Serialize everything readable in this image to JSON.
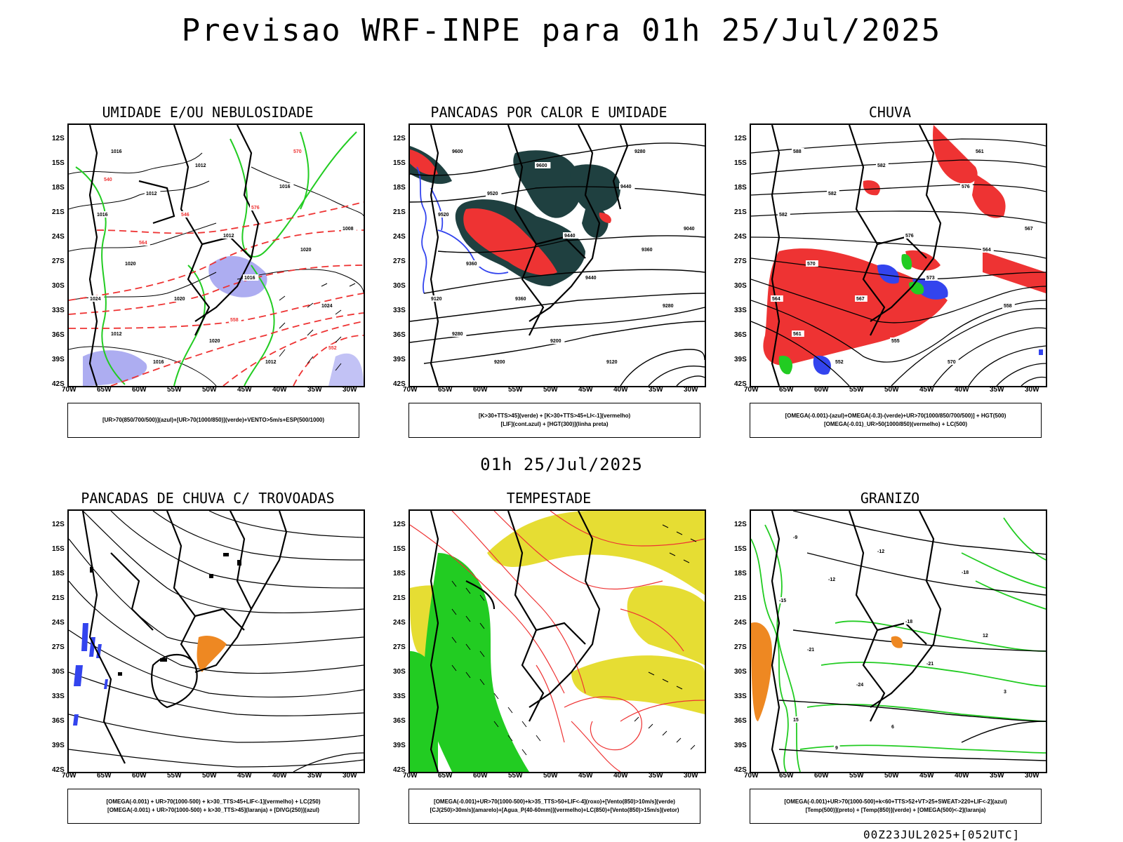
{
  "title": "Previsao WRF-INPE  para 01h 25/Jul/2025",
  "middle_title": "01h 25/Jul/2025",
  "footer": "00Z23JUL2025+[052UTC]",
  "lat_ticks": [
    "12S",
    "15S",
    "18S",
    "21S",
    "24S",
    "27S",
    "30S",
    "33S",
    "36S",
    "39S",
    "42S"
  ],
  "lon_ticks": [
    "70W",
    "65W",
    "60W",
    "55W",
    "50W",
    "45W",
    "40W",
    "35W",
    "30W"
  ],
  "panels": [
    {
      "title": "UMIDADE E/OU NEBULOSIDADE",
      "legend": [
        "[UR>70(850/700/500)](azul)+[UR>70(1000/850)](verde)+VENTO>5m/s+ESP(500/1000)"
      ],
      "contour_labels": [
        "1016",
        "1012",
        "1012",
        "1016",
        "1012",
        "1016",
        "1020",
        "1016",
        "1020",
        "1020",
        "1012",
        "1024",
        "1020",
        "1016",
        "1012",
        "1008",
        "1024",
        "570",
        "564",
        "558",
        "552",
        "546",
        "540",
        "576"
      ]
    },
    {
      "title": "PANCADAS POR CALOR E UMIDADE",
      "legend": [
        "[K>30+TTS>45](verde) + [K>30+TTS>45+LI<-1](vermelho)",
        "[LIF](cont.azul) + [HGT(300)](linha preta)"
      ],
      "contour_labels": [
        "9600",
        "9600",
        "9520",
        "9520",
        "9440",
        "9440",
        "9360",
        "9440",
        "9360",
        "9360",
        "9280",
        "9280",
        "9200",
        "9200",
        "9120",
        "9040",
        "9120",
        "9280"
      ]
    },
    {
      "title": "CHUVA",
      "legend": [
        "[OMEGA(-0.001)-(azul)+OMEGA(-0.3)-(verde)+UR>70(1000/850/700/500)] + HGT(500)",
        "[OMEGA(-0.01)_UR>50(1000/850)(vermelho) + LC(500)"
      ],
      "contour_labels": [
        "588",
        "582",
        "582",
        "582",
        "576",
        "576",
        "570",
        "573",
        "567",
        "564",
        "561",
        "558",
        "555",
        "552",
        "570",
        "567",
        "564",
        "561"
      ]
    },
    {
      "title": "PANCADAS DE CHUVA C/ TROVOADAS",
      "legend": [
        "[OMEGA(-0.001) + UR>70(1000-500) + k>30_TTS>45+LIF<-1](vermelho) + LC(250)",
        "[OMEGA(-0.001) + UR>70(1000-500) + k>30_TTS>45](laranja) + [DIVG(250)](azul)"
      ],
      "contour_labels": []
    },
    {
      "title": "TEMPESTADE",
      "legend": [
        "[OMEGA(-0.001)+UR>70(1000-500)+k>35_TTS>50+LIF<-4](roxo)+[Vento(850)>10m/s](verde)",
        "[CJ(250)>30m/s](amarelo)+[Agua_P(40-60mm)](vermelho)+LC(850)+[Vento(850)>15m/s](vetor)"
      ],
      "contour_labels": []
    },
    {
      "title": "GRANIZO",
      "legend": [
        "[OMEGA(-0.001)+UR>70(1000-500)+k<60+TTS>52+VT>25+SWEAT>220+LIF<-2](azul)",
        "[Temp(500)](preto) + [Temp(850)](verde) + [OMEGA(500)<-2](laranja)"
      ],
      "contour_labels": [
        "-9",
        "-12",
        "-12",
        "-15",
        "-18",
        "-18",
        "-21",
        "-21",
        "-24",
        "12",
        "15",
        "3",
        "6",
        "9"
      ]
    }
  ],
  "colors": {
    "green": "#22cc22",
    "red": "#ee3333",
    "blue": "#3344ee",
    "lavender": "#9999ee",
    "darkteal": "#1f4040",
    "yellow": "#e6dd33",
    "orange": "#ee8822",
    "black": "#000000"
  }
}
